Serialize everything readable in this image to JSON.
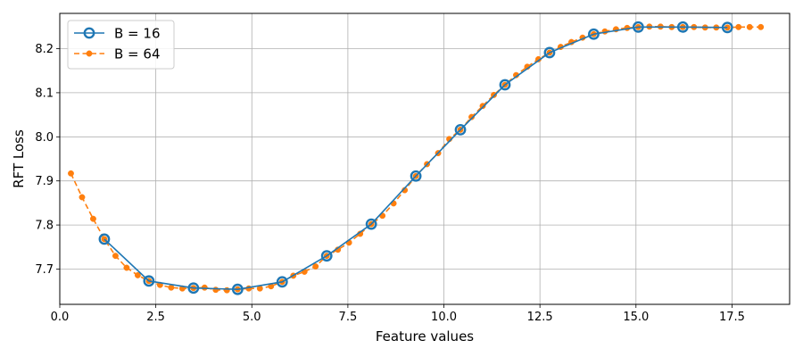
{
  "chart_data": {
    "type": "line",
    "xlabel": "Feature values",
    "ylabel": "RFT Loss",
    "xlim": [
      0,
      19
    ],
    "ylim": [
      7.62,
      8.28
    ],
    "x_ticks": [
      0.0,
      2.5,
      5.0,
      7.5,
      10.0,
      12.5,
      15.0,
      17.5
    ],
    "x_tick_labels": [
      "0.0",
      "2.5",
      "5.0",
      "7.5",
      "10.0",
      "12.5",
      "15.0",
      "17.5"
    ],
    "y_ticks": [
      7.7,
      7.8,
      7.9,
      8.0,
      8.1,
      8.2
    ],
    "y_tick_labels": [
      "7.7",
      "7.8",
      "7.9",
      "8.0",
      "8.1",
      "8.2"
    ],
    "grid": true,
    "legend_position": "top-left",
    "series": [
      {
        "name": "B = 16",
        "color": "#1f77b4",
        "line_style": "solid",
        "marker": "open-circle",
        "x": [
          1.16,
          2.32,
          3.48,
          4.63,
          5.79,
          6.95,
          8.11,
          9.27,
          10.43,
          11.59,
          12.75,
          13.9,
          15.06,
          16.22,
          17.38
        ],
        "y": [
          7.768,
          7.673,
          7.657,
          7.654,
          7.671,
          7.73,
          7.802,
          7.911,
          8.016,
          8.118,
          8.191,
          8.233,
          8.249,
          8.249,
          8.248
        ]
      },
      {
        "name": "B = 64",
        "color": "#ff7f0e",
        "line_style": "dashed",
        "marker": "filled-circle",
        "x": [
          0.29,
          0.58,
          0.87,
          1.16,
          1.45,
          1.74,
          2.03,
          2.32,
          2.61,
          2.9,
          3.19,
          3.48,
          3.77,
          4.06,
          4.35,
          4.63,
          4.92,
          5.21,
          5.5,
          5.79,
          6.08,
          6.37,
          6.66,
          6.95,
          7.24,
          7.53,
          7.82,
          8.11,
          8.4,
          8.69,
          8.98,
          9.27,
          9.56,
          9.85,
          10.14,
          10.43,
          10.72,
          11.01,
          11.3,
          11.59,
          11.88,
          12.17,
          12.46,
          12.75,
          13.04,
          13.32,
          13.61,
          13.9,
          14.19,
          14.48,
          14.77,
          15.06,
          15.35,
          15.64,
          15.93,
          16.22,
          16.51,
          16.8,
          17.09,
          17.38,
          17.67,
          17.96,
          18.25
        ],
        "y": [
          7.917,
          7.863,
          7.814,
          7.768,
          7.73,
          7.703,
          7.686,
          7.673,
          7.664,
          7.658,
          7.656,
          7.657,
          7.658,
          7.653,
          7.652,
          7.654,
          7.656,
          7.656,
          7.661,
          7.671,
          7.685,
          7.694,
          7.706,
          7.73,
          7.744,
          7.76,
          7.78,
          7.802,
          7.821,
          7.849,
          7.879,
          7.911,
          7.938,
          7.963,
          7.995,
          8.016,
          8.045,
          8.07,
          8.095,
          8.118,
          8.14,
          8.159,
          8.176,
          8.191,
          8.204,
          8.215,
          8.225,
          8.233,
          8.239,
          8.244,
          8.247,
          8.249,
          8.25,
          8.25,
          8.249,
          8.249,
          8.249,
          8.248,
          8.248,
          8.248,
          8.249,
          8.249,
          8.249
        ]
      }
    ]
  }
}
